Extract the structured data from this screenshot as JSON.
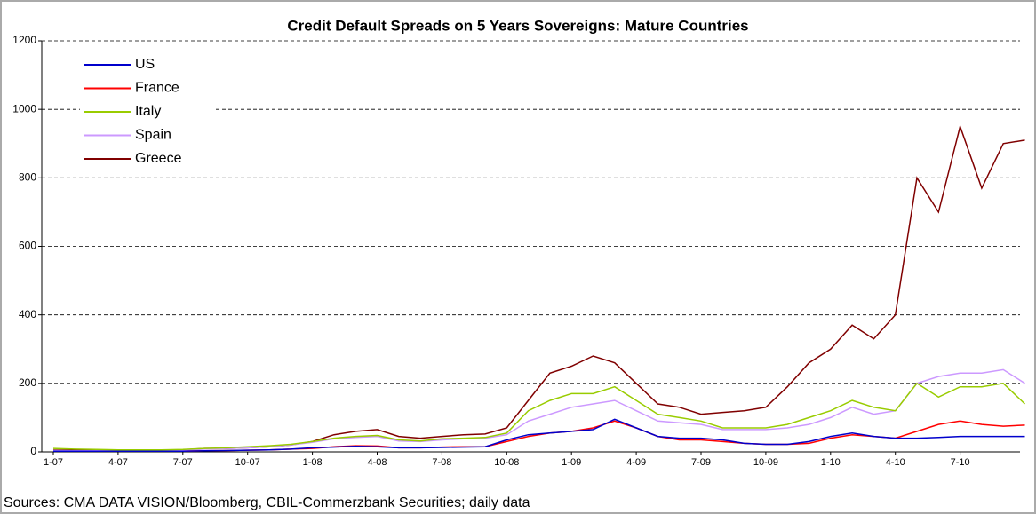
{
  "chart_data": {
    "type": "line",
    "title": "Credit Default Spreads on 5 Years Sovereigns: Mature Countries",
    "source": "Sources: CMA DATA VISION/Bloomberg, CBIL-Commerzbank Securities; daily data",
    "categories": [
      "1-07",
      null,
      null,
      "4-07",
      null,
      null,
      "7-07",
      null,
      null,
      "10-07",
      null,
      null,
      "1-08",
      null,
      null,
      "4-08",
      null,
      null,
      "7-08",
      null,
      null,
      "10-08",
      null,
      null,
      "1-09",
      null,
      null,
      "4-09",
      null,
      null,
      "7-09",
      null,
      null,
      "10-09",
      null,
      null,
      "1-10",
      null,
      null,
      "4-10",
      null,
      null,
      "7-10",
      null,
      null,
      null
    ],
    "series": [
      {
        "name": "US",
        "color": "#0000cc",
        "values": [
          2,
          2,
          2,
          2,
          2,
          2,
          2,
          3,
          4,
          5,
          6,
          8,
          12,
          14,
          16,
          15,
          12,
          12,
          13,
          14,
          15,
          35,
          50,
          55,
          60,
          65,
          95,
          70,
          45,
          40,
          40,
          35,
          25,
          22,
          22,
          30,
          45,
          55,
          45,
          40,
          40,
          42,
          45,
          45,
          45,
          45
        ]
      },
      {
        "name": "France",
        "color": "#ff0000",
        "values": [
          2,
          2,
          2,
          2,
          2,
          2,
          2,
          3,
          4,
          5,
          6,
          8,
          10,
          15,
          18,
          17,
          12,
          12,
          14,
          15,
          15,
          30,
          45,
          55,
          60,
          70,
          90,
          70,
          45,
          35,
          35,
          30,
          25,
          22,
          22,
          25,
          40,
          50,
          45,
          40,
          60,
          80,
          90,
          80,
          75,
          78
        ]
      },
      {
        "name": "Italy",
        "color": "#99cc00",
        "values": [
          10,
          8,
          7,
          6,
          6,
          6,
          7,
          10,
          12,
          15,
          18,
          22,
          30,
          40,
          45,
          48,
          35,
          32,
          38,
          40,
          42,
          55,
          120,
          150,
          170,
          170,
          190,
          150,
          110,
          100,
          90,
          70,
          70,
          70,
          80,
          100,
          120,
          150,
          130,
          120,
          200,
          160,
          190,
          190,
          200,
          140
        ]
      },
      {
        "name": "Spain",
        "color": "#cc99ff",
        "values": [
          3,
          3,
          3,
          3,
          3,
          4,
          4,
          8,
          10,
          12,
          15,
          20,
          28,
          38,
          42,
          45,
          32,
          30,
          35,
          38,
          40,
          50,
          90,
          110,
          130,
          140,
          150,
          120,
          90,
          85,
          80,
          65,
          65,
          65,
          70,
          80,
          100,
          130,
          110,
          120,
          200,
          220,
          230,
          230,
          240,
          200
        ]
      },
      {
        "name": "Greece",
        "color": "#800000",
        "values": [
          5,
          5,
          5,
          5,
          5,
          5,
          6,
          10,
          10,
          12,
          15,
          20,
          30,
          50,
          60,
          65,
          45,
          40,
          45,
          50,
          52,
          70,
          150,
          230,
          250,
          280,
          260,
          200,
          140,
          130,
          110,
          115,
          120,
          130,
          190,
          260,
          300,
          370,
          330,
          400,
          800,
          700,
          950,
          770,
          900,
          910
        ]
      }
    ],
    "ylim": [
      0,
      1200
    ],
    "yticks": [
      0,
      200,
      400,
      600,
      800,
      1000,
      1200
    ],
    "grid": true
  }
}
